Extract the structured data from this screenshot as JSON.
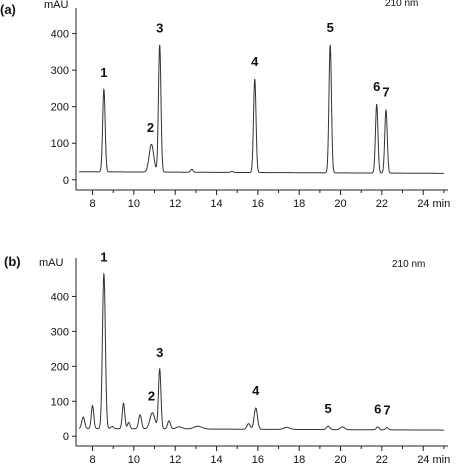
{
  "chart_data": [
    {
      "panel_label": "(a)",
      "type": "line",
      "ylabel": "mAU",
      "wavelength": "210 nm",
      "xlim": [
        7.2,
        25.2
      ],
      "ylim": [
        -28,
        470
      ],
      "xticks": [
        "8",
        "10",
        "12",
        "14",
        "16",
        "18",
        "20",
        "22",
        "24 min"
      ],
      "xtick_values": [
        8,
        10,
        12,
        14,
        16,
        18,
        20,
        22,
        24
      ],
      "yticks": [
        "0",
        "100",
        "200",
        "300",
        "400"
      ],
      "ytick_values": [
        0,
        100,
        200,
        300,
        400
      ],
      "baseline": 22,
      "peaks": [
        {
          "t": 8.55,
          "h": 248,
          "w": 0.06
        },
        {
          "t": 10.85,
          "h": 98,
          "w": 0.11
        },
        {
          "t": 11.25,
          "h": 370,
          "w": 0.06
        },
        {
          "t": 12.8,
          "h": 30,
          "w": 0.06
        },
        {
          "t": 14.75,
          "h": 25,
          "w": 0.06
        },
        {
          "t": 15.85,
          "h": 278,
          "w": 0.06
        },
        {
          "t": 19.5,
          "h": 372,
          "w": 0.06
        },
        {
          "t": 21.75,
          "h": 210,
          "w": 0.06
        },
        {
          "t": 22.2,
          "h": 195,
          "w": 0.06
        }
      ],
      "peak_labels": [
        {
          "text": "1",
          "t": 8.55,
          "h": 248
        },
        {
          "text": "2",
          "t": 10.85,
          "h": 98
        },
        {
          "text": "3",
          "t": 11.25,
          "h": 370
        },
        {
          "text": "4",
          "t": 15.85,
          "h": 278
        },
        {
          "text": "5",
          "t": 19.5,
          "h": 372
        },
        {
          "text": "6",
          "t": 21.75,
          "h": 210
        },
        {
          "text": "7",
          "t": 22.2,
          "h": 195
        }
      ]
    },
    {
      "panel_label": "(b)",
      "type": "line",
      "ylabel": "mAU",
      "wavelength": "210 nm",
      "xlim": [
        7.2,
        25.2
      ],
      "ylim": [
        -28,
        510
      ],
      "xticks": [
        "8",
        "10",
        "12",
        "14",
        "16",
        "18",
        "20",
        "22",
        "24 min"
      ],
      "xtick_values": [
        8,
        10,
        12,
        14,
        16,
        18,
        20,
        22,
        24
      ],
      "yticks": [
        "0",
        "100",
        "200",
        "300",
        "400"
      ],
      "ytick_values": [
        0,
        100,
        200,
        300,
        400
      ],
      "baseline": 22,
      "peaks": [
        {
          "t": 7.55,
          "h": 55,
          "w": 0.07
        },
        {
          "t": 8.0,
          "h": 88,
          "w": 0.06
        },
        {
          "t": 8.55,
          "h": 465,
          "w": 0.07
        },
        {
          "t": 8.95,
          "h": 28,
          "w": 0.07
        },
        {
          "t": 9.5,
          "h": 95,
          "w": 0.06
        },
        {
          "t": 9.75,
          "h": 40,
          "w": 0.06
        },
        {
          "t": 10.3,
          "h": 62,
          "w": 0.07
        },
        {
          "t": 10.9,
          "h": 68,
          "w": 0.12
        },
        {
          "t": 11.25,
          "h": 193,
          "w": 0.06
        },
        {
          "t": 11.7,
          "h": 45,
          "w": 0.07
        },
        {
          "t": 12.2,
          "h": 28,
          "w": 0.15
        },
        {
          "t": 13.1,
          "h": 30,
          "w": 0.2
        },
        {
          "t": 15.55,
          "h": 38,
          "w": 0.08
        },
        {
          "t": 15.9,
          "h": 83,
          "w": 0.08
        },
        {
          "t": 17.4,
          "h": 28,
          "w": 0.15
        },
        {
          "t": 19.4,
          "h": 32,
          "w": 0.08
        },
        {
          "t": 20.1,
          "h": 30,
          "w": 0.1
        },
        {
          "t": 21.8,
          "h": 30,
          "w": 0.07
        },
        {
          "t": 22.25,
          "h": 28,
          "w": 0.07
        }
      ],
      "peak_labels": [
        {
          "text": "1",
          "t": 8.55,
          "h": 465
        },
        {
          "text": "2",
          "t": 10.9,
          "h": 68
        },
        {
          "text": "3",
          "t": 11.25,
          "h": 193
        },
        {
          "text": "4",
          "t": 15.9,
          "h": 83
        },
        {
          "text": "5",
          "t": 19.4,
          "h": 32
        },
        {
          "text": "6",
          "t": 21.8,
          "h": 30
        },
        {
          "text": "7",
          "t": 22.25,
          "h": 28
        }
      ]
    }
  ]
}
